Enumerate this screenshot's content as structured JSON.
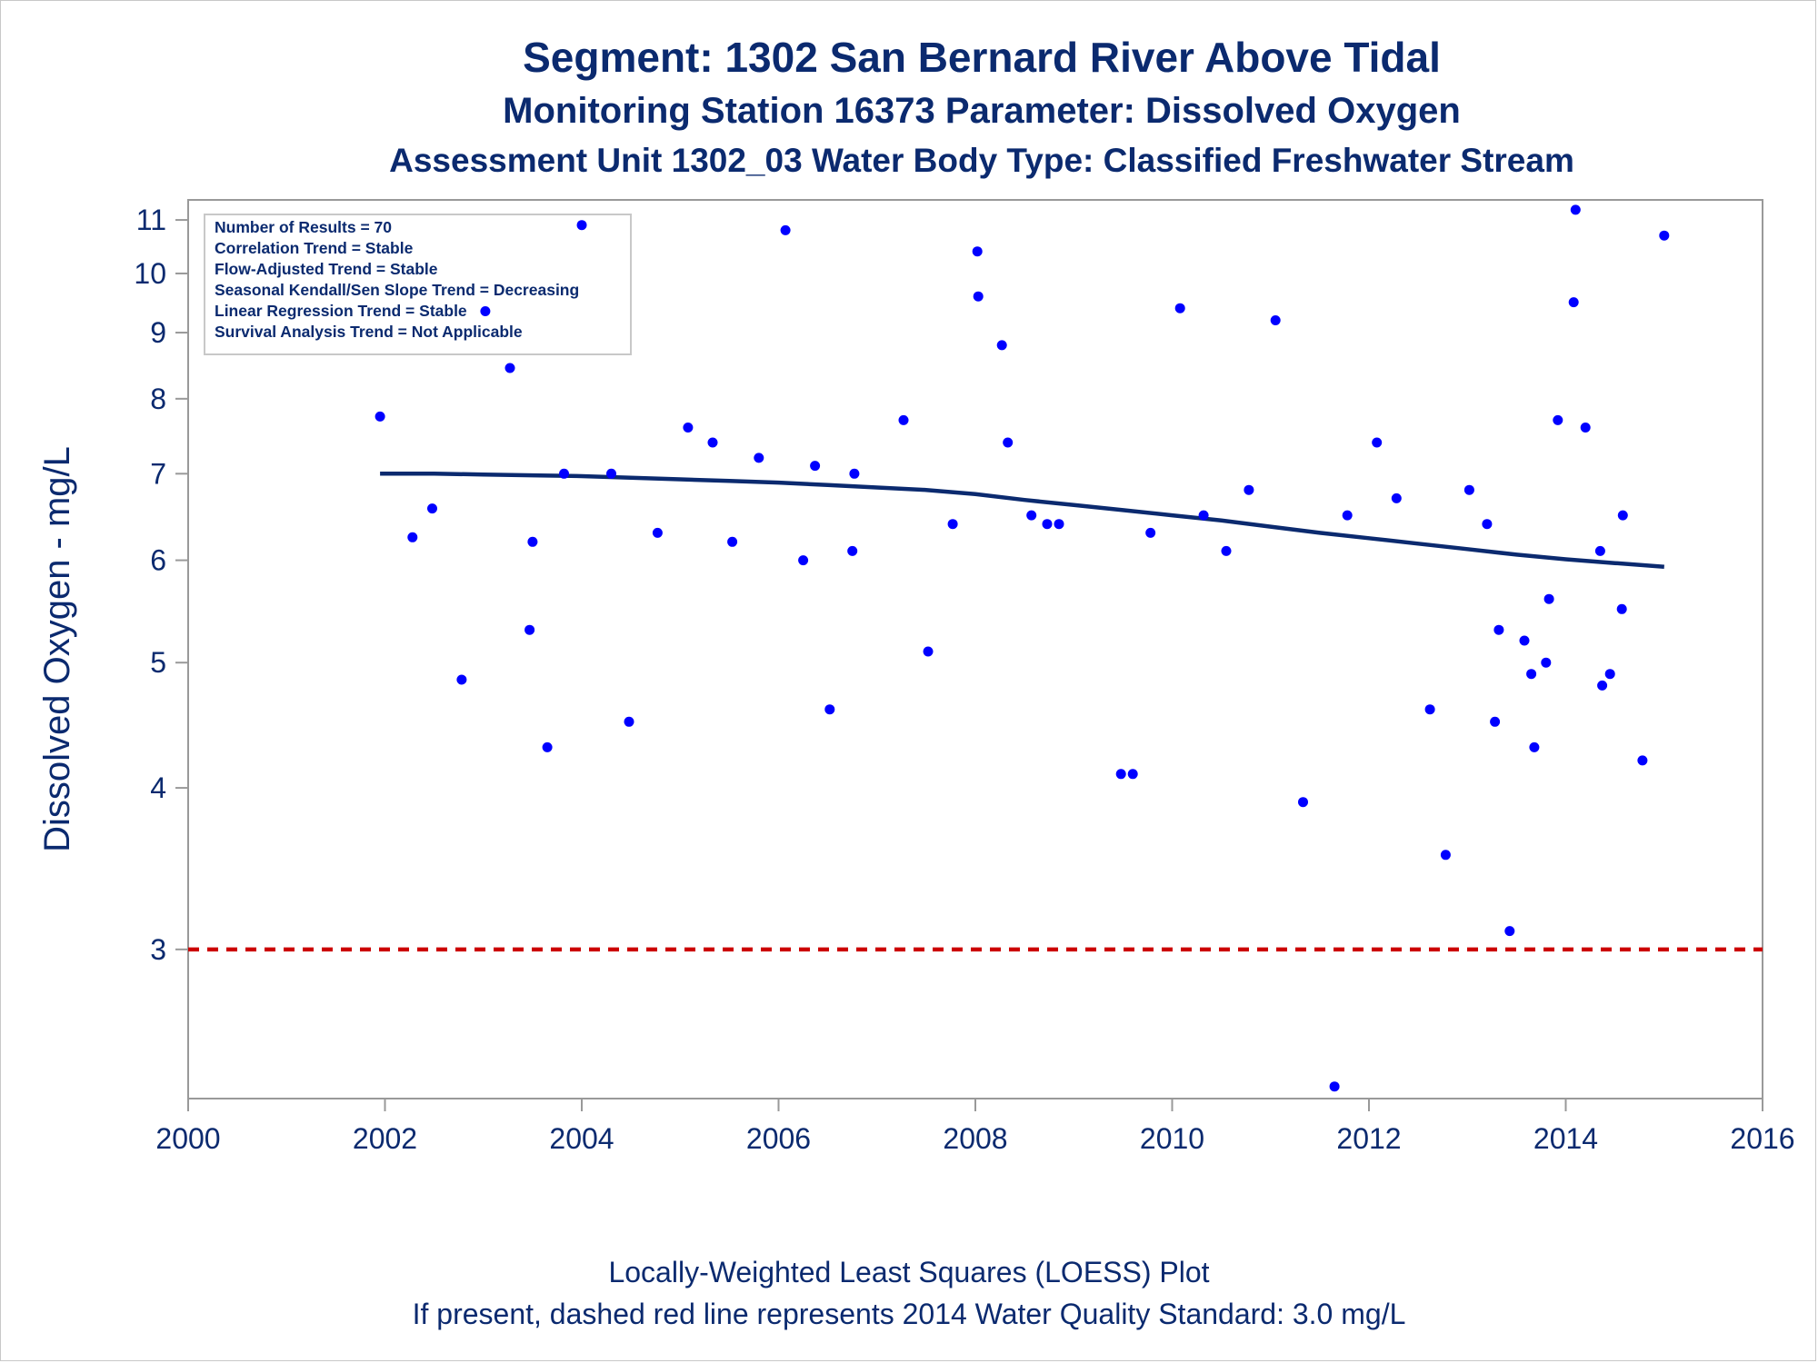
{
  "titles": {
    "line1": "Segment: 1302  San Bernard River Above Tidal",
    "line2": "Monitoring Station 16373 Parameter: Dissolved Oxygen",
    "line3": "Assessment Unit 1302_03   Water Body Type: Classified Freshwater Stream"
  },
  "footer": {
    "line1": "Locally-Weighted Least Squares (LOESS) Plot",
    "line2": "If present, dashed red line represents 2014 Water Quality Standard: 3.0 mg/L"
  },
  "colors": {
    "text": "#0b2a6f",
    "points": "#0000ff",
    "loess": "#0b2a6f",
    "standard": "#cc0000",
    "axis": "#999999"
  },
  "chart_data": {
    "type": "scatter",
    "ylabel": "Dissolved Oxygen - mg/L",
    "xlabel": "",
    "y_scale": "log",
    "xlim": [
      2000,
      2016
    ],
    "ylim": [
      2.3,
      11.4
    ],
    "x_ticks": [
      2000,
      2002,
      2004,
      2006,
      2008,
      2010,
      2012,
      2014,
      2016
    ],
    "y_ticks": [
      3,
      4,
      5,
      6,
      7,
      8,
      9,
      10,
      11
    ],
    "grid": false,
    "legend_placement": "top-left",
    "legend": [
      "Number of Results = 70",
      "Correlation Trend = Stable",
      "Flow-Adjusted Trend = Stable",
      "Seasonal Kendall/Sen Slope Trend = Decreasing",
      "Linear Regression Trend = Stable",
      "Survival Analysis Trend = Not Applicable"
    ],
    "standard_line": {
      "y": 3.0,
      "style": "dashed"
    },
    "points": [
      [
        2001.95,
        7.75
      ],
      [
        2002.28,
        6.25
      ],
      [
        2002.48,
        6.58
      ],
      [
        2002.78,
        4.85
      ],
      [
        2003.02,
        9.35
      ],
      [
        2003.27,
        8.45
      ],
      [
        2003.47,
        5.3
      ],
      [
        2003.5,
        6.2
      ],
      [
        2003.65,
        4.3
      ],
      [
        2003.82,
        7.0
      ],
      [
        2004.0,
        10.9
      ],
      [
        2004.3,
        7.0
      ],
      [
        2004.48,
        4.5
      ],
      [
        2004.77,
        6.3
      ],
      [
        2005.08,
        7.6
      ],
      [
        2005.33,
        7.4
      ],
      [
        2005.53,
        6.2
      ],
      [
        2005.8,
        7.2
      ],
      [
        2006.07,
        10.8
      ],
      [
        2006.25,
        6.0
      ],
      [
        2006.37,
        7.1
      ],
      [
        2006.52,
        4.6
      ],
      [
        2006.75,
        6.1
      ],
      [
        2006.77,
        7.0
      ],
      [
        2007.27,
        7.7
      ],
      [
        2007.52,
        5.1
      ],
      [
        2007.77,
        6.4
      ],
      [
        2008.02,
        10.4
      ],
      [
        2008.03,
        9.6
      ],
      [
        2008.27,
        8.8
      ],
      [
        2008.33,
        7.4
      ],
      [
        2008.57,
        6.5
      ],
      [
        2008.73,
        6.4
      ],
      [
        2008.85,
        6.4
      ],
      [
        2009.48,
        4.1
      ],
      [
        2009.6,
        4.1
      ],
      [
        2009.78,
        6.3
      ],
      [
        2010.08,
        9.4
      ],
      [
        2010.32,
        6.5
      ],
      [
        2010.55,
        6.1
      ],
      [
        2010.78,
        6.8
      ],
      [
        2011.05,
        9.2
      ],
      [
        2011.33,
        3.9
      ],
      [
        2011.65,
        2.35
      ],
      [
        2011.78,
        6.5
      ],
      [
        2012.08,
        7.4
      ],
      [
        2012.28,
        6.7
      ],
      [
        2012.62,
        4.6
      ],
      [
        2012.78,
        3.55
      ],
      [
        2013.02,
        6.8
      ],
      [
        2013.2,
        6.4
      ],
      [
        2013.28,
        4.5
      ],
      [
        2013.32,
        5.3
      ],
      [
        2013.43,
        3.1
      ],
      [
        2013.58,
        5.2
      ],
      [
        2013.65,
        4.9
      ],
      [
        2013.68,
        4.3
      ],
      [
        2013.8,
        5.0
      ],
      [
        2013.83,
        5.6
      ],
      [
        2013.92,
        7.7
      ],
      [
        2014.08,
        9.5
      ],
      [
        2014.1,
        11.2
      ],
      [
        2014.2,
        7.6
      ],
      [
        2014.35,
        6.1
      ],
      [
        2014.37,
        4.8
      ],
      [
        2014.45,
        4.9
      ],
      [
        2014.57,
        5.5
      ],
      [
        2014.58,
        6.5
      ],
      [
        2014.78,
        4.2
      ],
      [
        2015.0,
        10.7
      ]
    ],
    "loess_line": [
      [
        2001.95,
        7.0
      ],
      [
        2002.5,
        7.0
      ],
      [
        2003.0,
        6.99
      ],
      [
        2003.5,
        6.98
      ],
      [
        2004.0,
        6.97
      ],
      [
        2004.5,
        6.95
      ],
      [
        2005.0,
        6.93
      ],
      [
        2005.5,
        6.91
      ],
      [
        2006.0,
        6.89
      ],
      [
        2006.5,
        6.86
      ],
      [
        2007.0,
        6.83
      ],
      [
        2007.5,
        6.8
      ],
      [
        2008.0,
        6.75
      ],
      [
        2008.5,
        6.68
      ],
      [
        2009.0,
        6.62
      ],
      [
        2009.5,
        6.56
      ],
      [
        2010.0,
        6.5
      ],
      [
        2010.5,
        6.44
      ],
      [
        2011.0,
        6.37
      ],
      [
        2011.5,
        6.3
      ],
      [
        2012.0,
        6.24
      ],
      [
        2012.5,
        6.18
      ],
      [
        2013.0,
        6.12
      ],
      [
        2013.5,
        6.06
      ],
      [
        2014.0,
        6.01
      ],
      [
        2014.5,
        5.97
      ],
      [
        2015.0,
        5.93
      ]
    ]
  }
}
